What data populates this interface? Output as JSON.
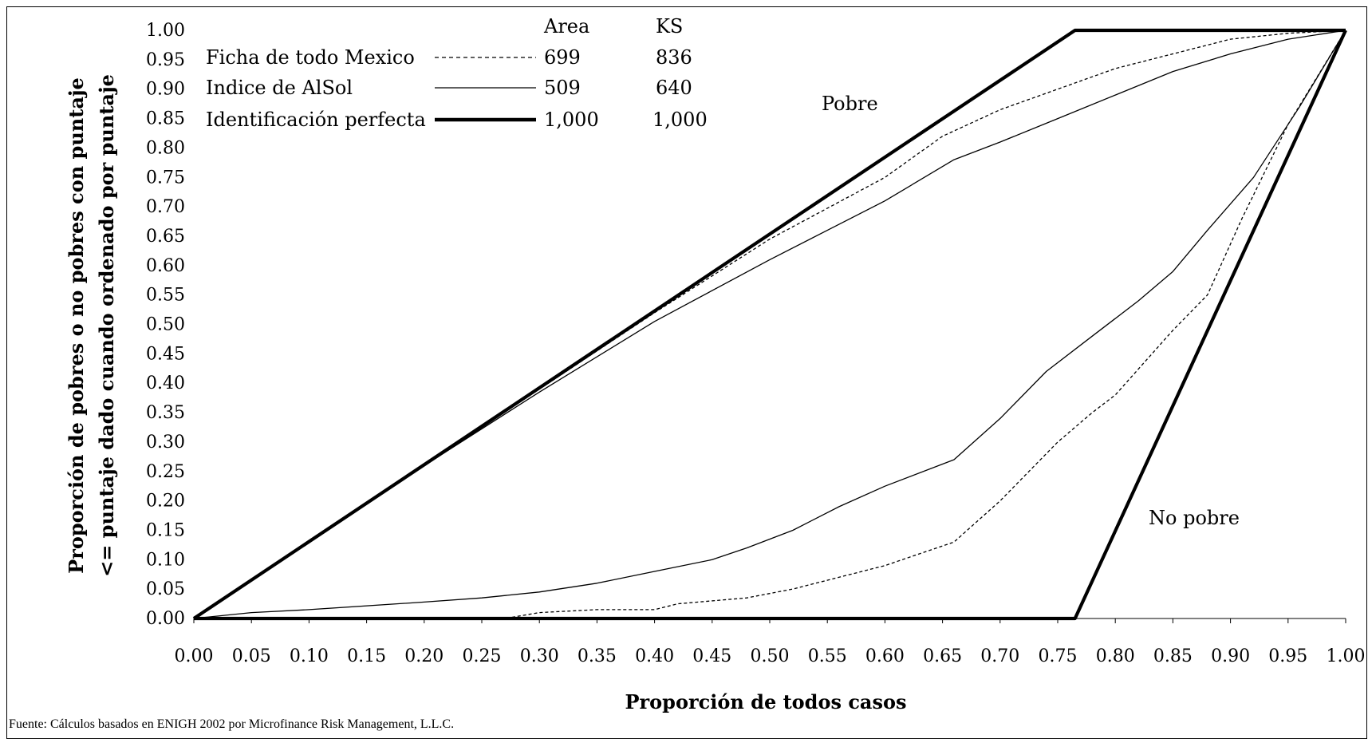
{
  "chart_data": {
    "type": "line",
    "title": "",
    "xlabel": "Proporción de todos casos",
    "ylabel_line1": "Proporción de pobres o no pobres con puntaje",
    "ylabel_line2": "<= puntaje dado cuando ordenado por puntaje",
    "xlim": [
      0,
      1
    ],
    "ylim": [
      0,
      1
    ],
    "x_ticks": [
      "0.00",
      "0.05",
      "0.10",
      "0.15",
      "0.20",
      "0.25",
      "0.30",
      "0.35",
      "0.40",
      "0.45",
      "0.50",
      "0.55",
      "0.60",
      "0.65",
      "0.70",
      "0.75",
      "0.80",
      "0.85",
      "0.90",
      "0.95",
      "1.00"
    ],
    "y_ticks": [
      "0.00",
      "0.05",
      "0.10",
      "0.15",
      "0.20",
      "0.25",
      "0.30",
      "0.35",
      "0.40",
      "0.45",
      "0.50",
      "0.55",
      "0.60",
      "0.65",
      "0.70",
      "0.75",
      "0.80",
      "0.85",
      "0.90",
      "0.95",
      "1.00"
    ],
    "grid": false,
    "legend": {
      "placement": "top-left",
      "col_area": "Area",
      "col_ks": "KS",
      "entries": [
        {
          "label": "Ficha de todo Mexico",
          "style": "dotted",
          "area": "699",
          "ks": "836"
        },
        {
          "label": "Indice de AlSol",
          "style": "thin",
          "area": "509",
          "ks": "640"
        },
        {
          "label": "Identificación perfecta",
          "style": "thick",
          "area": "1,000",
          "ks": "1,000"
        }
      ]
    },
    "annotations": {
      "pobre": "Pobre",
      "no_pobre": "No pobre"
    },
    "series": [
      {
        "name": "Ficha de todo Mexico",
        "group": "Pobre",
        "style": "dotted",
        "points": [
          [
            0,
            0
          ],
          [
            0.1,
            0.13
          ],
          [
            0.2,
            0.26
          ],
          [
            0.3,
            0.39
          ],
          [
            0.4,
            0.52
          ],
          [
            0.5,
            0.645
          ],
          [
            0.6,
            0.75
          ],
          [
            0.65,
            0.82
          ],
          [
            0.7,
            0.865
          ],
          [
            0.75,
            0.9
          ],
          [
            0.8,
            0.935
          ],
          [
            0.85,
            0.96
          ],
          [
            0.9,
            0.985
          ],
          [
            0.95,
            0.995
          ],
          [
            1,
            1
          ]
        ]
      },
      {
        "name": "Indice de AlSol",
        "group": "Pobre",
        "style": "thin",
        "points": [
          [
            0,
            0
          ],
          [
            0.1,
            0.13
          ],
          [
            0.2,
            0.26
          ],
          [
            0.3,
            0.385
          ],
          [
            0.4,
            0.505
          ],
          [
            0.5,
            0.61
          ],
          [
            0.55,
            0.66
          ],
          [
            0.6,
            0.71
          ],
          [
            0.66,
            0.78
          ],
          [
            0.7,
            0.81
          ],
          [
            0.75,
            0.85
          ],
          [
            0.8,
            0.89
          ],
          [
            0.85,
            0.93
          ],
          [
            0.9,
            0.96
          ],
          [
            0.95,
            0.985
          ],
          [
            1,
            1
          ]
        ]
      },
      {
        "name": "Identificación perfecta",
        "group": "Pobre",
        "style": "thick",
        "points": [
          [
            0,
            0
          ],
          [
            0.765,
            1
          ],
          [
            1,
            1
          ]
        ]
      },
      {
        "name": "Ficha de todo Mexico",
        "group": "No pobre",
        "style": "dotted",
        "points": [
          [
            0,
            0
          ],
          [
            0.27,
            0
          ],
          [
            0.3,
            0.01
          ],
          [
            0.35,
            0.015
          ],
          [
            0.4,
            0.015
          ],
          [
            0.42,
            0.025
          ],
          [
            0.48,
            0.035
          ],
          [
            0.52,
            0.05
          ],
          [
            0.56,
            0.07
          ],
          [
            0.6,
            0.09
          ],
          [
            0.66,
            0.13
          ],
          [
            0.7,
            0.2
          ],
          [
            0.75,
            0.3
          ],
          [
            0.78,
            0.35
          ],
          [
            0.8,
            0.38
          ],
          [
            0.85,
            0.49
          ],
          [
            0.88,
            0.55
          ],
          [
            0.91,
            0.68
          ],
          [
            0.95,
            0.84
          ],
          [
            1,
            1
          ]
        ]
      },
      {
        "name": "Indice de AlSol",
        "group": "No pobre",
        "style": "thin",
        "points": [
          [
            0,
            0
          ],
          [
            0.05,
            0.01
          ],
          [
            0.1,
            0.015
          ],
          [
            0.2,
            0.028
          ],
          [
            0.25,
            0.035
          ],
          [
            0.3,
            0.045
          ],
          [
            0.35,
            0.06
          ],
          [
            0.4,
            0.08
          ],
          [
            0.45,
            0.1
          ],
          [
            0.48,
            0.12
          ],
          [
            0.52,
            0.15
          ],
          [
            0.56,
            0.19
          ],
          [
            0.6,
            0.225
          ],
          [
            0.66,
            0.27
          ],
          [
            0.7,
            0.34
          ],
          [
            0.74,
            0.42
          ],
          [
            0.78,
            0.48
          ],
          [
            0.82,
            0.54
          ],
          [
            0.85,
            0.59
          ],
          [
            0.88,
            0.66
          ],
          [
            0.92,
            0.75
          ],
          [
            0.96,
            0.87
          ],
          [
            1,
            1
          ]
        ]
      },
      {
        "name": "Identificación perfecta",
        "group": "No pobre",
        "style": "thick",
        "points": [
          [
            0,
            0
          ],
          [
            0.765,
            0
          ],
          [
            1,
            1
          ]
        ]
      }
    ]
  },
  "source_note": "Fuente: Cálculos basados en ENIGH 2002 por Microfinance Risk Management, L.L.C."
}
